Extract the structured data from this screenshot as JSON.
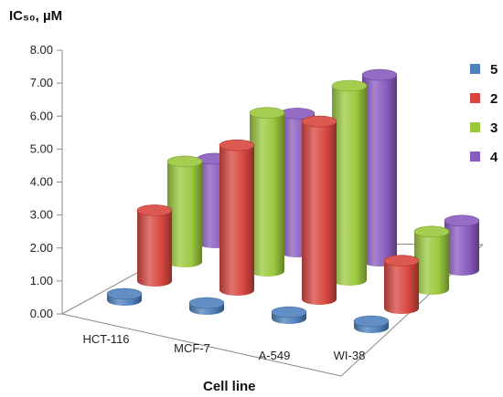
{
  "chart_data": {
    "type": "bar",
    "style": "3d-cylinder",
    "ylabel": "IC₅₀, µM",
    "xlabel": "Cell line",
    "ylim": [
      0,
      8
    ],
    "yticks": [
      "0.00",
      "1.00",
      "2.00",
      "3.00",
      "4.00",
      "5.00",
      "6.00",
      "7.00",
      "8.00"
    ],
    "categories": [
      "HCT-116",
      "MCF-7",
      "A-549",
      "WI-38"
    ],
    "series": [
      {
        "name": "5",
        "color": "#4f81bd",
        "values": [
          0.0,
          0.0,
          0.0,
          0.0
        ]
      },
      {
        "name": "2",
        "color": "#d8463f",
        "values": [
          2.15,
          4.4,
          5.4,
          1.45
        ]
      },
      {
        "name": "3",
        "color": "#9bc93e",
        "values": [
          3.05,
          4.8,
          5.9,
          1.75
        ]
      },
      {
        "name": "4",
        "color": "#8a5bbf",
        "values": [
          2.55,
          4.2,
          5.65,
          1.5
        ]
      }
    ],
    "legend_position": "right",
    "grid": false
  }
}
